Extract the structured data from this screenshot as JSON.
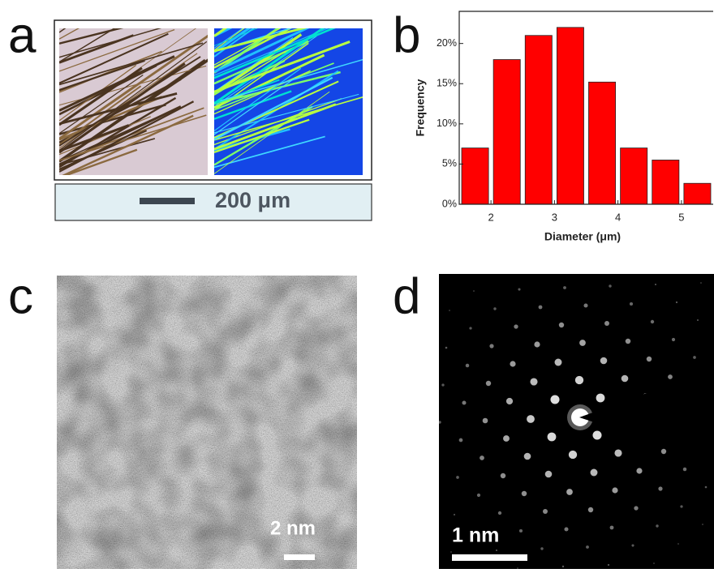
{
  "panels": {
    "a": "a",
    "b": "b",
    "c": "c",
    "d": "d"
  },
  "scale_bars": {
    "a": "200 μm",
    "c": "2 nm",
    "d": "1 nm"
  },
  "chart_data": {
    "type": "histogram",
    "x_label": "Diameter (μm)",
    "y_label": "Frequency",
    "bins": [
      1.5,
      2.0,
      2.5,
      3.0,
      3.5,
      4.0,
      4.5,
      5.0,
      5.5
    ],
    "values": [
      7,
      18,
      21,
      22,
      15.2,
      7,
      5.5,
      2.6
    ],
    "color": "#ff0000",
    "xlim": [
      1.5,
      5.5
    ],
    "xticks": [
      2,
      3,
      4,
      5
    ],
    "ylim": [
      0,
      24
    ],
    "yticks": [
      {
        "value": 0,
        "label": "0%"
      },
      {
        "value": 5,
        "label": "5%"
      },
      {
        "value": 10,
        "label": "10%"
      },
      {
        "value": 15,
        "label": "15%"
      },
      {
        "value": 20,
        "label": "20%"
      }
    ]
  }
}
